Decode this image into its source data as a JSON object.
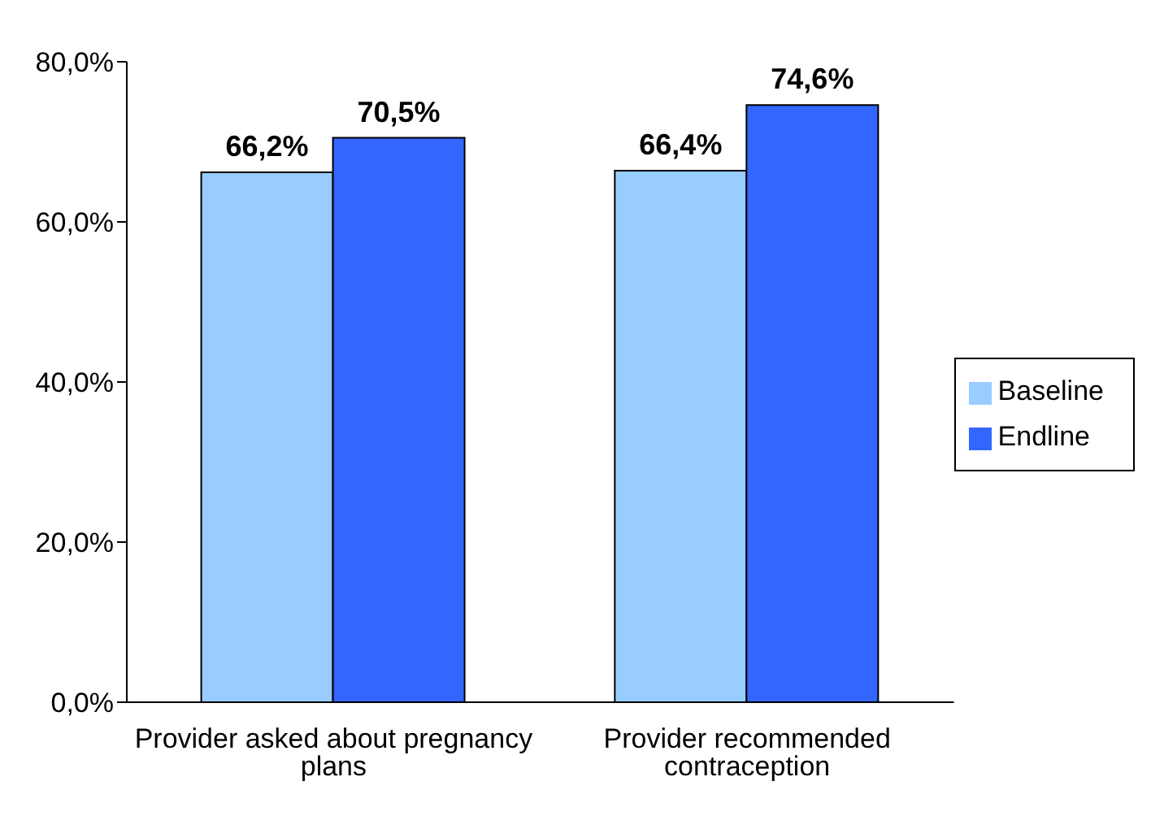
{
  "chart_data": {
    "type": "bar",
    "categories": [
      "Provider asked about pregnancy plans",
      "Provider recommended contraception"
    ],
    "series": [
      {
        "name": "Baseline",
        "color": "#99ccff",
        "values": [
          66.2,
          66.4
        ],
        "value_labels": [
          "66,2%",
          "66,4%"
        ]
      },
      {
        "name": "Endline",
        "color": "#3366ff",
        "values": [
          70.5,
          74.6
        ],
        "value_labels": [
          "70,5%",
          "74,6%"
        ]
      }
    ],
    "ylim": [
      0,
      80
    ],
    "yticks": [
      {
        "value": 0,
        "label": "0,0%"
      },
      {
        "value": 20,
        "label": "20,0%"
      },
      {
        "value": 40,
        "label": "40,0%"
      },
      {
        "value": 60,
        "label": "60,0%"
      },
      {
        "value": 80,
        "label": "80,0%"
      }
    ],
    "grid": false,
    "legend": "right"
  }
}
